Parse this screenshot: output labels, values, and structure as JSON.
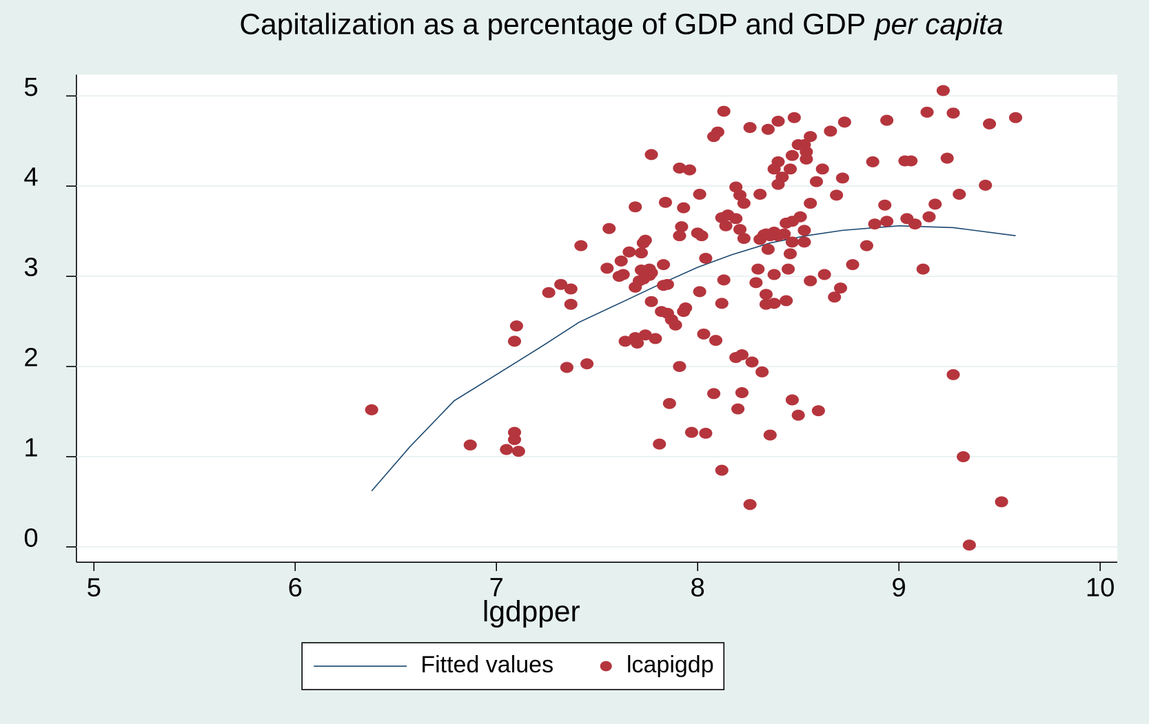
{
  "chart_data": {
    "type": "scatter",
    "title": [
      "Capitalization as a percentage of GDP and GDP",
      "per capita"
    ],
    "x_label": "lgdpper",
    "xlim": [
      4.913,
      10.085
    ],
    "xticks": [
      5,
      6,
      7,
      8,
      9,
      10
    ],
    "ylim": [
      -0.17,
      5.236
    ],
    "yticks": [
      0,
      1,
      2,
      3,
      4,
      5
    ],
    "grid": true,
    "legend": "bottom",
    "series": [
      {
        "name": "Fitted values",
        "type": "line",
        "color": "#1a476f",
        "x": [
          6.38,
          6.57,
          6.79,
          7.0,
          7.23,
          7.41,
          7.63,
          7.81,
          8.0,
          8.17,
          8.36,
          8.54,
          8.72,
          9.0,
          9.27,
          9.58
        ],
        "values": [
          0.62,
          1.11,
          1.62,
          1.91,
          2.23,
          2.49,
          2.72,
          2.91,
          3.1,
          3.24,
          3.37,
          3.45,
          3.51,
          3.56,
          3.54,
          3.45
        ]
      },
      {
        "name": "lcapigdp",
        "type": "scatter",
        "color": "#b5353d",
        "x": [
          6.38,
          6.87,
          7.05,
          7.09,
          7.09,
          7.11,
          7.1,
          7.09,
          7.26,
          7.32,
          7.37,
          7.37,
          7.35,
          7.45,
          7.42,
          7.56,
          7.55,
          7.62,
          7.63,
          7.61,
          7.66,
          7.69,
          7.73,
          7.74,
          7.72,
          7.72,
          7.71,
          7.76,
          7.77,
          7.76,
          7.69,
          7.73,
          7.77,
          7.83,
          7.84,
          7.85,
          7.83,
          7.77,
          7.82,
          7.85,
          7.87,
          7.89,
          7.93,
          7.94,
          7.91,
          7.96,
          7.93,
          7.92,
          7.91,
          8.0,
          8.02,
          8.01,
          8.04,
          8.01,
          8.03,
          8.09,
          7.91,
          7.64,
          7.69,
          7.74,
          7.7,
          7.79,
          7.86,
          7.97,
          8.04,
          8.08,
          7.81,
          8.12,
          8.08,
          8.1,
          8.13,
          8.12,
          8.14,
          8.15,
          8.19,
          8.19,
          8.21,
          8.23,
          8.21,
          8.23,
          8.13,
          8.12,
          8.26,
          8.31,
          8.31,
          8.33,
          8.35,
          8.4,
          8.48,
          8.47,
          8.4,
          8.38,
          8.46,
          8.42,
          8.4,
          8.5,
          8.53,
          8.56,
          8.54,
          8.54,
          8.59,
          8.62,
          8.66,
          8.73,
          8.72,
          8.69,
          8.56,
          8.51,
          8.47,
          8.44,
          8.53,
          8.53,
          8.47,
          8.38,
          8.4,
          8.43,
          8.36,
          8.34,
          8.46,
          8.35,
          8.3,
          8.38,
          8.45,
          8.56,
          8.63,
          8.77,
          8.71,
          8.68,
          8.29,
          8.34,
          8.34,
          8.38,
          8.44,
          8.84,
          8.87,
          8.94,
          8.88,
          8.93,
          8.94,
          9.03,
          9.06,
          9.04,
          9.08,
          9.14,
          9.22,
          9.27,
          9.24,
          9.3,
          9.43,
          9.45,
          9.58,
          9.18,
          9.15,
          9.12,
          9.27,
          9.32,
          9.35,
          9.51,
          8.26,
          8.36,
          8.47,
          8.5,
          8.6,
          8.2,
          8.22,
          8.19,
          8.22,
          8.27,
          8.32
        ],
        "values": [
          1.52,
          1.13,
          1.08,
          1.27,
          1.19,
          1.06,
          2.45,
          2.28,
          2.82,
          2.91,
          2.86,
          2.69,
          1.99,
          2.03,
          3.34,
          3.53,
          3.09,
          3.17,
          3.02,
          3.0,
          3.27,
          3.77,
          3.37,
          3.4,
          3.26,
          3.07,
          2.95,
          3.08,
          3.04,
          3.01,
          2.88,
          2.97,
          4.35,
          3.13,
          3.82,
          2.91,
          2.9,
          2.72,
          2.61,
          2.59,
          2.52,
          2.46,
          2.61,
          2.65,
          4.2,
          4.18,
          3.76,
          3.55,
          3.45,
          3.48,
          3.45,
          3.91,
          3.2,
          2.83,
          2.36,
          2.29,
          2.0,
          2.28,
          2.32,
          2.35,
          2.26,
          2.31,
          1.59,
          1.27,
          1.26,
          1.7,
          1.14,
          0.85,
          4.55,
          4.6,
          4.83,
          3.65,
          3.56,
          3.68,
          3.64,
          3.99,
          3.9,
          3.81,
          3.52,
          3.42,
          2.96,
          2.7,
          4.65,
          3.91,
          3.41,
          3.46,
          4.63,
          4.72,
          4.76,
          4.34,
          4.27,
          4.19,
          4.19,
          4.1,
          4.02,
          4.46,
          4.46,
          4.55,
          4.38,
          4.3,
          4.05,
          4.19,
          4.61,
          4.71,
          4.09,
          3.9,
          3.81,
          3.66,
          3.61,
          3.59,
          3.51,
          3.38,
          3.38,
          3.49,
          3.45,
          3.47,
          3.45,
          3.47,
          3.25,
          3.3,
          3.08,
          3.02,
          3.08,
          2.95,
          3.02,
          3.13,
          2.87,
          2.77,
          2.93,
          2.8,
          2.69,
          2.7,
          2.73,
          3.34,
          4.27,
          4.73,
          3.58,
          3.79,
          3.61,
          4.28,
          4.28,
          3.64,
          3.58,
          4.82,
          5.06,
          4.81,
          4.31,
          3.91,
          4.01,
          4.69,
          4.76,
          3.8,
          3.66,
          3.08,
          1.91,
          1.0,
          0.02,
          0.5,
          0.47,
          1.24,
          1.63,
          1.46,
          1.51,
          1.53,
          1.71,
          2.1,
          2.13,
          2.05,
          1.94
        ]
      }
    ]
  }
}
